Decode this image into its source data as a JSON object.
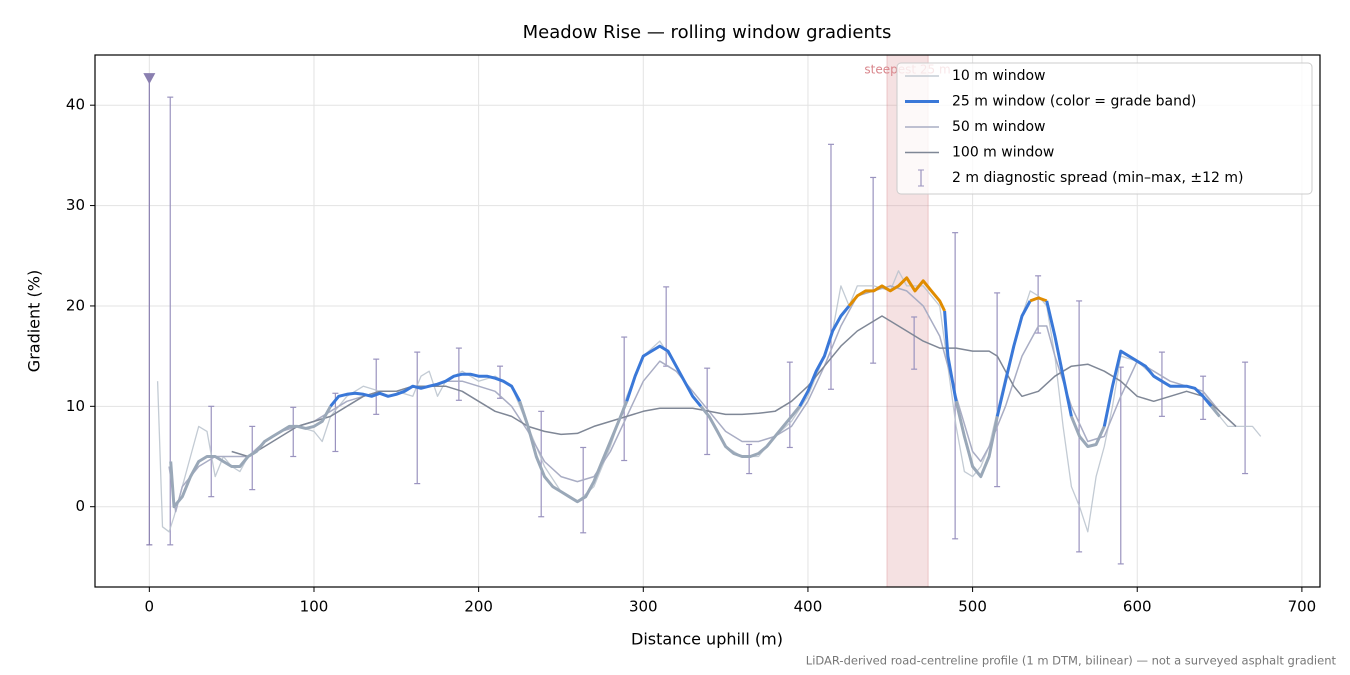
{
  "chart_data": {
    "type": "line",
    "title": "Meadow Rise — rolling window gradients",
    "x_label": "Distance uphill (m)",
    "y_label": "Gradient (%)",
    "footnote": "LiDAR-derived road-centreline profile (1 m DTM, bilinear) — not a surveyed asphalt gradient",
    "xlim": [
      -33,
      711
    ],
    "ylim": [
      -8,
      45
    ],
    "xticks": [
      0,
      100,
      200,
      300,
      400,
      500,
      600,
      700
    ],
    "yticks": [
      0,
      10,
      20,
      30,
      40
    ],
    "grid": true,
    "legend": "upper right",
    "span": {
      "x0": 448,
      "x1": 473,
      "label": "steepest 25 m",
      "color": "#d9868c"
    },
    "series": [
      {
        "name": "10 m window",
        "color": "#b9c2cc",
        "width": 1.3,
        "x": [
          5,
          8,
          12,
          15,
          20,
          25,
          30,
          35,
          40,
          45,
          50,
          55,
          60,
          70,
          80,
          90,
          100,
          105,
          110,
          120,
          130,
          140,
          150,
          160,
          165,
          170,
          175,
          180,
          190,
          200,
          210,
          220,
          230,
          240,
          250,
          260,
          270,
          280,
          290,
          300,
          310,
          320,
          330,
          340,
          350,
          360,
          370,
          380,
          390,
          400,
          410,
          415,
          420,
          425,
          430,
          440,
          450,
          455,
          460,
          470,
          480,
          485,
          490,
          495,
          500,
          505,
          510,
          520,
          530,
          535,
          540,
          545,
          550,
          555,
          560,
          565,
          570,
          575,
          580,
          585,
          590,
          600,
          610,
          620,
          630,
          640,
          650,
          655,
          660,
          670,
          675
        ],
        "values": [
          12.5,
          -2,
          -2.5,
          -1,
          2,
          5,
          8,
          7.5,
          3,
          5,
          4,
          3.5,
          5,
          6.5,
          7.5,
          8,
          7.5,
          6.5,
          9,
          11,
          12,
          11.5,
          11.5,
          11,
          13,
          13.5,
          11,
          12.5,
          13.5,
          12.5,
          13,
          12,
          8,
          4,
          1.5,
          0.5,
          2,
          6,
          11,
          15,
          16.5,
          14,
          11,
          9,
          6,
          5,
          5,
          7,
          8.5,
          11,
          15,
          17.5,
          22,
          20,
          22,
          22,
          21.5,
          23.5,
          22,
          22,
          20,
          14,
          8,
          3.5,
          3,
          4,
          6,
          13,
          19,
          21.5,
          21,
          20,
          15,
          8,
          2,
          0,
          -2.5,
          3,
          6,
          10,
          15,
          14.5,
          13,
          12,
          12,
          11.5,
          9,
          8,
          8,
          8,
          7
        ]
      },
      {
        "name": "25 m window (color = grade band)",
        "color": "#3a78d8",
        "width": 3,
        "band_edges": [
          10,
          20
        ],
        "band_colors": [
          "#9aa8b8",
          "#3a78d8",
          "#e08c00"
        ],
        "x": [
          13,
          15,
          20,
          25,
          30,
          35,
          40,
          45,
          50,
          55,
          60,
          65,
          70,
          75,
          80,
          85,
          90,
          95,
          100,
          105,
          110,
          115,
          120,
          125,
          130,
          135,
          140,
          145,
          150,
          155,
          160,
          165,
          170,
          175,
          180,
          185,
          190,
          195,
          200,
          205,
          210,
          215,
          220,
          225,
          230,
          235,
          240,
          245,
          250,
          255,
          260,
          265,
          270,
          275,
          280,
          285,
          290,
          295,
          300,
          305,
          310,
          315,
          320,
          325,
          330,
          335,
          340,
          345,
          350,
          355,
          360,
          365,
          370,
          375,
          380,
          385,
          390,
          395,
          400,
          405,
          410,
          415,
          420,
          425,
          430,
          435,
          440,
          445,
          450,
          455,
          460,
          465,
          470,
          475,
          480,
          483,
          485,
          490,
          495,
          500,
          505,
          510,
          515,
          520,
          525,
          530,
          535,
          540,
          545,
          550,
          555,
          560,
          565,
          570,
          575,
          580,
          585,
          590,
          595,
          600,
          605,
          610,
          615,
          620,
          625,
          630,
          635,
          640,
          645,
          650
        ],
        "values": [
          4.5,
          0,
          1,
          3,
          4.5,
          5,
          5,
          4.5,
          4,
          4,
          5,
          5.5,
          6.5,
          7,
          7.5,
          8,
          8,
          7.8,
          8,
          8.5,
          10,
          11,
          11.2,
          11.3,
          11.2,
          11,
          11.3,
          11,
          11.2,
          11.5,
          12,
          11.8,
          12,
          12.2,
          12.5,
          13,
          13.2,
          13.2,
          13,
          13,
          12.8,
          12.5,
          12,
          10.5,
          8,
          5,
          3,
          2,
          1.5,
          1,
          0.5,
          1,
          2.5,
          4.5,
          6.5,
          8.5,
          10.5,
          13,
          15,
          15.5,
          16,
          15.5,
          14,
          12.5,
          11,
          10,
          9,
          7.5,
          6,
          5.3,
          5,
          5,
          5.3,
          6,
          7,
          8,
          9,
          10,
          11.5,
          13.5,
          15,
          17.5,
          19,
          20,
          21,
          21.5,
          21.5,
          22,
          21.5,
          22,
          22.8,
          21.5,
          22.5,
          21.5,
          20.5,
          19.5,
          15,
          10.5,
          7,
          4,
          3,
          5,
          9,
          12.5,
          16,
          19,
          20.5,
          20.8,
          20.5,
          17,
          13,
          9,
          7,
          6,
          6.2,
          8,
          12,
          15.5,
          15,
          14.5,
          14,
          13,
          12.5,
          12,
          12,
          12,
          11.8,
          11,
          10,
          9
        ]
      },
      {
        "name": "50 m window",
        "color": "#a9adc4",
        "width": 1.5,
        "x": [
          12,
          16,
          20,
          30,
          40,
          50,
          60,
          70,
          80,
          90,
          100,
          110,
          120,
          130,
          140,
          150,
          160,
          170,
          180,
          190,
          200,
          210,
          220,
          230,
          240,
          250,
          260,
          270,
          280,
          290,
          300,
          310,
          320,
          330,
          340,
          350,
          360,
          370,
          380,
          390,
          400,
          410,
          420,
          430,
          440,
          450,
          460,
          470,
          480,
          490,
          500,
          505,
          510,
          520,
          530,
          540,
          545,
          550,
          560,
          570,
          580,
          590,
          600,
          610,
          620,
          630,
          640,
          650,
          660
        ],
        "values": [
          4,
          -0.5,
          2,
          4,
          5,
          5,
          5,
          6.5,
          7.5,
          8,
          8.5,
          9.5,
          10.5,
          11,
          11.5,
          11.5,
          12,
          12,
          12.5,
          12.5,
          12,
          11.5,
          10,
          7.5,
          4.5,
          3,
          2.5,
          3,
          5.5,
          9,
          12.5,
          14.5,
          13.5,
          11.5,
          9.5,
          7.5,
          6.5,
          6.5,
          7,
          8,
          10.5,
          14,
          18,
          21,
          21.5,
          22,
          21.5,
          20,
          17,
          11,
          5.5,
          4.5,
          6,
          10,
          15,
          18,
          18,
          15,
          10,
          6.5,
          7,
          11,
          14.5,
          13.5,
          12.5,
          12,
          11.5,
          9.5,
          8
        ]
      },
      {
        "name": "100 m window",
        "color": "#7f8796",
        "width": 1.5,
        "x": [
          50,
          60,
          70,
          80,
          90,
          100,
          110,
          120,
          130,
          140,
          150,
          160,
          170,
          180,
          190,
          200,
          210,
          220,
          230,
          240,
          250,
          260,
          270,
          280,
          290,
          300,
          310,
          320,
          330,
          340,
          350,
          360,
          370,
          380,
          390,
          400,
          410,
          420,
          430,
          440,
          445,
          450,
          460,
          470,
          480,
          490,
          500,
          510,
          515,
          520,
          525,
          530,
          540,
          550,
          560,
          570,
          580,
          590,
          600,
          610,
          620,
          630,
          640,
          650,
          660
        ],
        "values": [
          5.5,
          5,
          6,
          7,
          8,
          8.5,
          9,
          10,
          11,
          11.5,
          11.5,
          12,
          12,
          12,
          11.5,
          10.5,
          9.5,
          9,
          8,
          7.5,
          7.2,
          7.3,
          8,
          8.5,
          9,
          9.5,
          9.8,
          9.8,
          9.8,
          9.5,
          9.2,
          9.2,
          9.3,
          9.5,
          10.5,
          12,
          14,
          16,
          17.5,
          18.5,
          19,
          18.5,
          17.5,
          16.5,
          15.8,
          15.8,
          15.5,
          15.5,
          15,
          13.5,
          12,
          11,
          11.5,
          13,
          14,
          14.2,
          13.5,
          12.5,
          11,
          10.5,
          11,
          11.5,
          11,
          9.5,
          8
        ]
      }
    ],
    "errorbars": {
      "name": "2 m diagnostic spread (min–max, ±12 m)",
      "color": "#9a93bf",
      "x": [
        12.7,
        37.6,
        62.5,
        87.4,
        113,
        137.8,
        162.7,
        188,
        213,
        238,
        263.5,
        288.4,
        313.9,
        338.8,
        364.3,
        389,
        414,
        439.6,
        464.5,
        489.4,
        514.9,
        539.8,
        564.7,
        590,
        615,
        640,
        665.5
      ],
      "low": [
        -3.8,
        1.0,
        1.7,
        5.0,
        5.5,
        9.2,
        2.3,
        10.6,
        10.8,
        -1.0,
        -2.6,
        4.6,
        14.0,
        5.2,
        3.3,
        5.9,
        11.7,
        14.3,
        13.7,
        -3.2,
        2.0,
        17.3,
        -4.5,
        -5.7,
        9.0,
        8.7,
        3.3
      ],
      "high": [
        40.8,
        10.0,
        8.0,
        9.9,
        11.3,
        14.7,
        15.4,
        15.8,
        14.0,
        9.5,
        5.9,
        16.9,
        21.9,
        13.8,
        6.2,
        14.4,
        36.1,
        32.8,
        18.9,
        27.3,
        21.3,
        23.0,
        20.5,
        13.9,
        15.4,
        13.0,
        14.4
      ]
    },
    "outlier": {
      "x": 0,
      "low": -3.8,
      "high": 42.6,
      "color": "#8a7fb0"
    }
  }
}
